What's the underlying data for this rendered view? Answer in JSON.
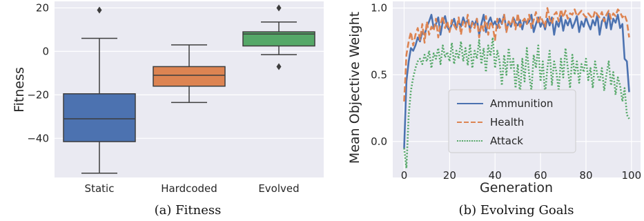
{
  "chart_data": [
    {
      "type": "box",
      "ylabel": "Fitness",
      "ylim": [
        -58,
        23
      ],
      "yticks": [
        20,
        0,
        -20,
        -40
      ],
      "ytick_labels": [
        "20",
        "0",
        "−20",
        "−40"
      ],
      "grid": true,
      "caption": "(a) Fitness",
      "categories": [
        "Static",
        "Hardcoded",
        "Evolved"
      ],
      "boxes": [
        {
          "name": "Static",
          "whisker_low": -56,
          "q1": -41.5,
          "median": -31,
          "q3": -19.5,
          "whisker_high": 6,
          "outliers": [
            19
          ],
          "color": "#4c72b0"
        },
        {
          "name": "Hardcoded",
          "whisker_low": -23.5,
          "q1": -16,
          "median": -11,
          "q3": -7,
          "whisker_high": 3,
          "outliers": [],
          "color": "#dd8452"
        },
        {
          "name": "Evolved",
          "whisker_low": -1.5,
          "q1": 2.5,
          "median": 8,
          "q3": 9,
          "whisker_high": 13.5,
          "outliers": [
            20,
            -7
          ],
          "color": "#55a868"
        }
      ]
    },
    {
      "type": "line",
      "xlabel": "Generation",
      "ylabel": "Mean Objective Weight",
      "xlim": [
        -5,
        104
      ],
      "ylim": [
        -0.27,
        1.05
      ],
      "xticks": [
        0,
        20,
        40,
        60,
        80,
        100
      ],
      "yticks": [
        0.0,
        0.5,
        1.0
      ],
      "ytick_labels": [
        "0.0",
        "0.5",
        "1.0"
      ],
      "grid": true,
      "legend_position": "lower-center",
      "caption": "(b) Evolving Goals",
      "series": [
        {
          "name": "Ammunition",
          "style": "solid",
          "color": "#4c72b0",
          "x": [
            0,
            1,
            2,
            3,
            4,
            5,
            6,
            7,
            8,
            9,
            10,
            11,
            12,
            13,
            14,
            15,
            16,
            17,
            18,
            19,
            20,
            21,
            22,
            23,
            24,
            25,
            26,
            27,
            28,
            29,
            30,
            31,
            32,
            33,
            34,
            35,
            36,
            37,
            38,
            39,
            40,
            41,
            42,
            43,
            44,
            45,
            46,
            47,
            48,
            49,
            50,
            51,
            52,
            53,
            54,
            55,
            56,
            57,
            58,
            59,
            60,
            61,
            62,
            63,
            64,
            65,
            66,
            67,
            68,
            69,
            70,
            71,
            72,
            73,
            74,
            75,
            76,
            77,
            78,
            79,
            80,
            81,
            82,
            83,
            84,
            85,
            86,
            87,
            88,
            89,
            90,
            91,
            92,
            93,
            94,
            95,
            96,
            97,
            98,
            99
          ],
          "values": [
            -0.05,
            0.45,
            0.6,
            0.7,
            0.68,
            0.72,
            0.78,
            0.75,
            0.82,
            0.8,
            0.86,
            0.9,
            0.95,
            0.85,
            0.88,
            0.93,
            0.8,
            0.9,
            0.94,
            0.86,
            0.83,
            0.88,
            0.92,
            0.85,
            0.9,
            0.86,
            0.93,
            0.88,
            0.91,
            0.84,
            0.9,
            0.87,
            0.92,
            0.8,
            0.88,
            0.95,
            0.82,
            0.89,
            0.93,
            0.87,
            0.9,
            0.85,
            0.92,
            0.88,
            0.95,
            0.83,
            0.9,
            0.86,
            0.93,
            0.89,
            0.87,
            0.91,
            0.84,
            0.92,
            0.88,
            0.9,
            0.95,
            0.82,
            0.88,
            0.93,
            0.86,
            0.9,
            0.84,
            0.92,
            0.87,
            0.93,
            0.8,
            0.9,
            0.86,
            0.94,
            0.83,
            0.91,
            0.87,
            0.92,
            0.85,
            0.89,
            0.94,
            0.82,
            0.9,
            0.86,
            0.93,
            0.88,
            0.84,
            0.91,
            0.87,
            0.95,
            0.8,
            0.9,
            0.93,
            0.85,
            0.96,
            0.84,
            0.92,
            0.89,
            0.95,
            0.85,
            0.88,
            0.62,
            0.6,
            0.37
          ]
        },
        {
          "name": "Health",
          "style": "dashed",
          "color": "#dd8452",
          "x": [
            0,
            1,
            2,
            3,
            4,
            5,
            6,
            7,
            8,
            9,
            10,
            11,
            12,
            13,
            14,
            15,
            16,
            17,
            18,
            19,
            20,
            21,
            22,
            23,
            24,
            25,
            26,
            27,
            28,
            29,
            30,
            31,
            32,
            33,
            34,
            35,
            36,
            37,
            38,
            39,
            40,
            41,
            42,
            43,
            44,
            45,
            46,
            47,
            48,
            49,
            50,
            51,
            52,
            53,
            54,
            55,
            56,
            57,
            58,
            59,
            60,
            61,
            62,
            63,
            64,
            65,
            66,
            67,
            68,
            69,
            70,
            71,
            72,
            73,
            74,
            75,
            76,
            77,
            78,
            79,
            80,
            81,
            82,
            83,
            84,
            85,
            86,
            87,
            88,
            89,
            90,
            91,
            92,
            93,
            94,
            95,
            96,
            97,
            98,
            99
          ],
          "values": [
            0.3,
            0.65,
            0.75,
            0.82,
            0.72,
            0.8,
            0.85,
            0.76,
            0.88,
            0.74,
            0.9,
            0.8,
            0.86,
            0.83,
            0.92,
            0.78,
            0.88,
            0.94,
            0.85,
            0.9,
            0.82,
            0.91,
            0.87,
            0.84,
            0.93,
            0.8,
            0.9,
            0.86,
            0.95,
            0.82,
            0.89,
            0.85,
            0.92,
            0.78,
            0.88,
            0.83,
            0.94,
            0.8,
            0.9,
            0.86,
            0.76,
            0.92,
            0.85,
            0.88,
            0.95,
            0.82,
            0.9,
            0.87,
            0.93,
            0.84,
            0.96,
            0.86,
            0.9,
            0.92,
            0.88,
            0.95,
            0.85,
            0.91,
            0.97,
            0.88,
            0.94,
            0.9,
            0.86,
            1.0,
            0.92,
            0.88,
            0.95,
            0.97,
            0.9,
            0.99,
            0.93,
            0.98,
            0.92,
            0.96,
            0.95,
            0.99,
            0.94,
            0.96,
            0.98,
            0.95,
            0.93,
            0.96,
            0.94,
            0.92,
            0.98,
            0.95,
            0.93,
            0.97,
            0.9,
            0.95,
            0.98,
            0.92,
            0.96,
            0.94,
            0.99,
            0.97,
            0.93,
            0.95,
            0.9,
            0.78
          ]
        },
        {
          "name": "Attack",
          "style": "dotted",
          "color": "#55a868",
          "x": [
            0,
            1,
            2,
            3,
            4,
            5,
            6,
            7,
            8,
            9,
            10,
            11,
            12,
            13,
            14,
            15,
            16,
            17,
            18,
            19,
            20,
            21,
            22,
            23,
            24,
            25,
            26,
            27,
            28,
            29,
            30,
            31,
            32,
            33,
            34,
            35,
            36,
            37,
            38,
            39,
            40,
            41,
            42,
            43,
            44,
            45,
            46,
            47,
            48,
            49,
            50,
            51,
            52,
            53,
            54,
            55,
            56,
            57,
            58,
            59,
            60,
            61,
            62,
            63,
            64,
            65,
            66,
            67,
            68,
            69,
            70,
            71,
            72,
            73,
            74,
            75,
            76,
            77,
            78,
            79,
            80,
            81,
            82,
            83,
            84,
            85,
            86,
            87,
            88,
            89,
            90,
            91,
            92,
            93,
            94,
            95,
            96,
            97,
            98,
            99
          ],
          "values": [
            -0.05,
            -0.2,
            0.2,
            0.38,
            0.48,
            0.55,
            0.6,
            0.62,
            0.58,
            0.65,
            0.6,
            0.68,
            0.55,
            0.66,
            0.62,
            0.7,
            0.58,
            0.72,
            0.63,
            0.67,
            0.6,
            0.74,
            0.58,
            0.68,
            0.62,
            0.75,
            0.6,
            0.7,
            0.57,
            0.73,
            0.55,
            0.68,
            0.62,
            0.76,
            0.58,
            0.7,
            0.52,
            0.72,
            0.64,
            0.78,
            0.55,
            0.68,
            0.6,
            0.42,
            0.65,
            0.5,
            0.7,
            0.55,
            0.62,
            0.4,
            0.58,
            0.35,
            0.62,
            0.45,
            0.7,
            0.5,
            0.38,
            0.65,
            0.55,
            0.72,
            0.45,
            0.6,
            0.35,
            0.55,
            0.68,
            0.42,
            0.6,
            0.52,
            0.38,
            0.62,
            0.48,
            0.7,
            0.55,
            0.4,
            0.65,
            0.5,
            0.6,
            0.44,
            0.58,
            0.52,
            0.62,
            0.46,
            0.55,
            0.4,
            0.6,
            0.5,
            0.45,
            0.55,
            0.38,
            0.5,
            0.6,
            0.42,
            0.52,
            0.35,
            0.48,
            0.42,
            0.3,
            0.4,
            0.2,
            0.17
          ]
        }
      ]
    }
  ]
}
